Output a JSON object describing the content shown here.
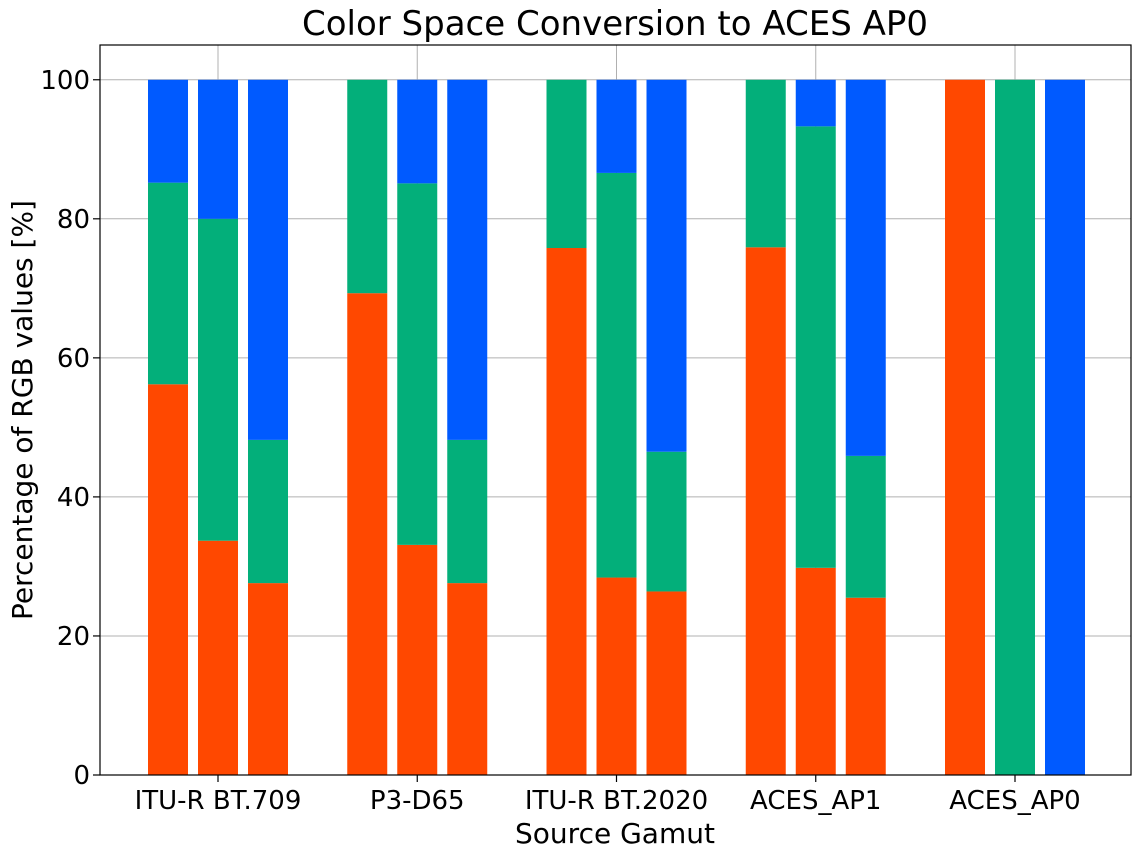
{
  "chart_data": {
    "type": "bar",
    "stacked": true,
    "title": "Color Space Conversion to ACES AP0",
    "xlabel": "Source Gamut",
    "ylabel": "Percentage of RGB values [%]",
    "ylim": [
      0,
      105
    ],
    "yticks": [
      0,
      20,
      40,
      60,
      80,
      100
    ],
    "grid": true,
    "categories": [
      "ITU-R BT.709",
      "P3-D65",
      "ITU-R BT.2020",
      "ACES_AP1",
      "ACES_AP0"
    ],
    "bars_per_category": 3,
    "stack_colors": [
      "#ff4800",
      "#03af7a",
      "#005aff"
    ],
    "bars": [
      [
        [
          56.2,
          29.0,
          14.8
        ],
        [
          33.7,
          46.3,
          20.0
        ],
        [
          27.6,
          20.6,
          51.8
        ]
      ],
      [
        [
          69.3,
          30.7,
          0.0
        ],
        [
          33.1,
          52.0,
          14.9
        ],
        [
          27.6,
          20.6,
          51.8
        ]
      ],
      [
        [
          75.8,
          24.2,
          0.0
        ],
        [
          28.4,
          58.2,
          13.4
        ],
        [
          26.4,
          20.1,
          53.5
        ]
      ],
      [
        [
          75.9,
          24.1,
          0.0
        ],
        [
          29.8,
          63.5,
          6.7
        ],
        [
          25.5,
          20.4,
          54.1
        ]
      ],
      [
        [
          100.0,
          0.0,
          0.0
        ],
        [
          0.0,
          100.0,
          0.0
        ],
        [
          0.0,
          0.0,
          100.0
        ]
      ]
    ]
  }
}
